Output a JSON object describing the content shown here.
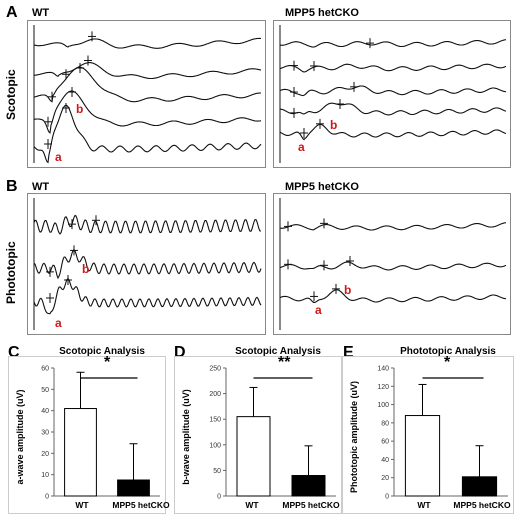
{
  "panels": {
    "A": "A",
    "B": "B",
    "C": "C",
    "D": "D",
    "E": "E"
  },
  "traces": {
    "wt_label": "WT",
    "cko_label": "MPP5 hetCKO",
    "scotopic_label": "Scotopic",
    "photopic_label": "Phototopic",
    "a_label": "a",
    "b_label": "b"
  },
  "chart_data": [
    {
      "type": "bar",
      "title": "Scotopic Analysis",
      "ylabel": "a-wave amplitude (uV)",
      "categories": [
        "WT",
        "MPP5 hetCKO"
      ],
      "values": [
        41,
        7.5
      ],
      "errors": [
        17,
        17
      ],
      "ylim": [
        0,
        60
      ],
      "yticks": [
        0,
        10,
        20,
        30,
        40,
        50,
        60
      ],
      "significance": "*",
      "colors": [
        "#ffffff",
        "#000000"
      ]
    },
    {
      "type": "bar",
      "title": "Scotopic Analysis",
      "ylabel": "b-wave amplitude (uV)",
      "categories": [
        "WT",
        "MPP5 hetCKO"
      ],
      "values": [
        155,
        40
      ],
      "errors": [
        57,
        58
      ],
      "ylim": [
        0,
        250
      ],
      "yticks": [
        0,
        50,
        100,
        150,
        200,
        250
      ],
      "significance": "**",
      "colors": [
        "#ffffff",
        "#000000"
      ]
    },
    {
      "type": "bar",
      "title": "Phototopic Analysis",
      "ylabel": "Phototopic amplitude (uV)",
      "categories": [
        "WT",
        "MPP5 hetCKO"
      ],
      "values": [
        88,
        21
      ],
      "errors": [
        34,
        34
      ],
      "ylim": [
        0,
        140
      ],
      "yticks": [
        0,
        20,
        40,
        60,
        80,
        100,
        120,
        140
      ],
      "significance": "*",
      "colors": [
        "#ffffff",
        "#000000"
      ]
    }
  ]
}
